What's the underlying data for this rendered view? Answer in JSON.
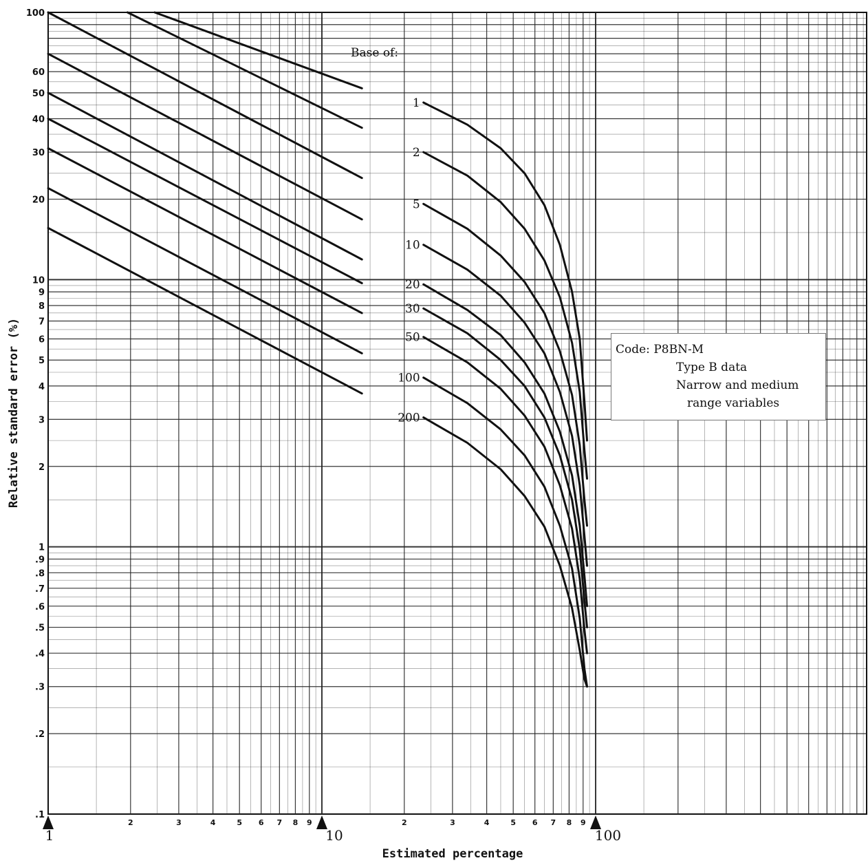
{
  "chart_data": {
    "type": "line",
    "title": "",
    "xlabel": "Estimated percentage",
    "ylabel": "Relative standard error (%)",
    "x_scale": "log",
    "y_scale": "log",
    "xlim": [
      1,
      100
    ],
    "ylim": [
      0.1,
      100
    ],
    "x_major_ticks": [
      "1",
      "10",
      "100"
    ],
    "x_minor_ticks": [
      "2",
      "3",
      "4",
      "5",
      "6",
      "7",
      "8",
      "9",
      "2",
      "3",
      "4",
      "5",
      "6",
      "7",
      "8",
      "9"
    ],
    "y_ticks": [
      {
        "value": 100,
        "label": "100"
      },
      {
        "value": 60,
        "label": "60"
      },
      {
        "value": 50,
        "label": "50"
      },
      {
        "value": 40,
        "label": "40"
      },
      {
        "value": 30,
        "label": "30"
      },
      {
        "value": 20,
        "label": "20"
      },
      {
        "value": 10,
        "label": "10"
      },
      {
        "value": 9,
        "label": "9"
      },
      {
        "value": 8,
        "label": "8"
      },
      {
        "value": 7,
        "label": "7"
      },
      {
        "value": 6,
        "label": "6"
      },
      {
        "value": 5,
        "label": "5"
      },
      {
        "value": 4,
        "label": "4"
      },
      {
        "value": 3,
        "label": "3"
      },
      {
        "value": 2,
        "label": "2"
      },
      {
        "value": 1,
        "label": "1"
      },
      {
        "value": 0.9,
        "label": ".9"
      },
      {
        "value": 0.8,
        "label": ".8"
      },
      {
        "value": 0.7,
        "label": ".7"
      },
      {
        "value": 0.6,
        "label": ".6"
      },
      {
        "value": 0.5,
        "label": ".5"
      },
      {
        "value": 0.4,
        "label": ".4"
      },
      {
        "value": 0.3,
        "label": ".3"
      },
      {
        "value": 0.2,
        "label": ".2"
      },
      {
        "value": 0.1,
        "label": ".1"
      }
    ],
    "legend_header": "Base of:",
    "grid": true,
    "series": [
      {
        "name": "1",
        "left_points": [
          [
            2.45,
            100
          ],
          [
            14,
            52
          ]
        ],
        "right_points": [
          [
            23.5,
            46
          ],
          [
            34,
            38
          ],
          [
            45,
            31
          ],
          [
            55,
            25
          ],
          [
            65,
            19
          ],
          [
            74,
            13.5
          ],
          [
            82,
            9
          ],
          [
            87.5,
            6
          ],
          [
            91,
            3.5
          ],
          [
            93,
            2.5
          ]
        ]
      },
      {
        "name": "2",
        "left_points": [
          [
            1.95,
            100
          ],
          [
            14,
            37
          ]
        ],
        "right_points": [
          [
            23.5,
            30
          ],
          [
            34,
            24.5
          ],
          [
            45,
            19.5
          ],
          [
            55,
            15.5
          ],
          [
            65,
            11.8
          ],
          [
            74,
            8.6
          ],
          [
            82,
            5.8
          ],
          [
            87.5,
            3.8
          ],
          [
            91,
            2.3
          ],
          [
            93,
            1.8
          ]
        ]
      },
      {
        "name": "5",
        "left_points": [
          [
            1,
            100
          ],
          [
            14,
            24
          ]
        ],
        "right_points": [
          [
            23.5,
            19.2
          ],
          [
            34,
            15.5
          ],
          [
            45,
            12.3
          ],
          [
            55,
            9.8
          ],
          [
            65,
            7.5
          ],
          [
            74,
            5.4
          ],
          [
            82,
            3.7
          ],
          [
            87.5,
            2.4
          ],
          [
            91,
            1.5
          ],
          [
            93,
            1.2
          ]
        ]
      },
      {
        "name": "10",
        "left_points": [
          [
            1,
            70
          ],
          [
            14,
            16.8
          ]
        ],
        "right_points": [
          [
            23.5,
            13.5
          ],
          [
            34,
            10.9
          ],
          [
            45,
            8.7
          ],
          [
            55,
            6.9
          ],
          [
            65,
            5.3
          ],
          [
            74,
            3.8
          ],
          [
            82,
            2.6
          ],
          [
            87.5,
            1.7
          ],
          [
            91,
            1.1
          ],
          [
            93,
            0.85
          ]
        ]
      },
      {
        "name": "20",
        "left_points": [
          [
            1,
            50
          ],
          [
            14,
            11.9
          ]
        ],
        "right_points": [
          [
            23.5,
            9.6
          ],
          [
            34,
            7.7
          ],
          [
            45,
            6.2
          ],
          [
            55,
            4.9
          ],
          [
            65,
            3.75
          ],
          [
            74,
            2.7
          ],
          [
            82,
            1.85
          ],
          [
            87.5,
            1.2
          ],
          [
            91,
            0.78
          ],
          [
            93,
            0.6
          ]
        ]
      },
      {
        "name": "30",
        "left_points": [
          [
            1,
            40
          ],
          [
            14,
            9.7
          ]
        ],
        "right_points": [
          [
            23.5,
            7.8
          ],
          [
            34,
            6.3
          ],
          [
            45,
            5.0
          ],
          [
            55,
            4.0
          ],
          [
            65,
            3.05
          ],
          [
            74,
            2.2
          ],
          [
            82,
            1.5
          ],
          [
            87.5,
            0.98
          ],
          [
            91,
            0.63
          ],
          [
            93,
            0.5
          ]
        ]
      },
      {
        "name": "50",
        "left_points": [
          [
            1,
            31
          ],
          [
            14,
            7.5
          ]
        ],
        "right_points": [
          [
            23.5,
            6.1
          ],
          [
            34,
            4.9
          ],
          [
            45,
            3.9
          ],
          [
            55,
            3.1
          ],
          [
            65,
            2.37
          ],
          [
            74,
            1.7
          ],
          [
            82,
            1.17
          ],
          [
            87.5,
            0.76
          ],
          [
            91,
            0.49
          ],
          [
            93,
            0.4
          ]
        ]
      },
      {
        "name": "100",
        "left_points": [
          [
            1,
            22
          ],
          [
            14,
            5.3
          ]
        ],
        "right_points": [
          [
            23.5,
            4.3
          ],
          [
            34,
            3.45
          ],
          [
            45,
            2.75
          ],
          [
            55,
            2.2
          ],
          [
            65,
            1.68
          ],
          [
            74,
            1.2
          ],
          [
            82,
            0.83
          ],
          [
            87.5,
            0.54
          ],
          [
            91,
            0.35
          ],
          [
            93,
            0.3
          ]
        ]
      },
      {
        "name": "200",
        "left_points": [
          [
            1,
            15.6
          ],
          [
            14,
            3.75
          ]
        ],
        "right_points": [
          [
            23.5,
            3.05
          ],
          [
            34,
            2.45
          ],
          [
            45,
            1.95
          ],
          [
            55,
            1.55
          ],
          [
            65,
            1.19
          ],
          [
            74,
            0.85
          ],
          [
            82,
            0.59
          ],
          [
            87.5,
            0.41
          ],
          [
            91,
            0.32
          ],
          [
            93,
            0.3
          ]
        ]
      }
    ],
    "annotation": {
      "code_line": "Code: P8BN-M",
      "type_line": "Type B data",
      "desc_line1": "Narrow and medium",
      "desc_line2": "range variables"
    }
  }
}
